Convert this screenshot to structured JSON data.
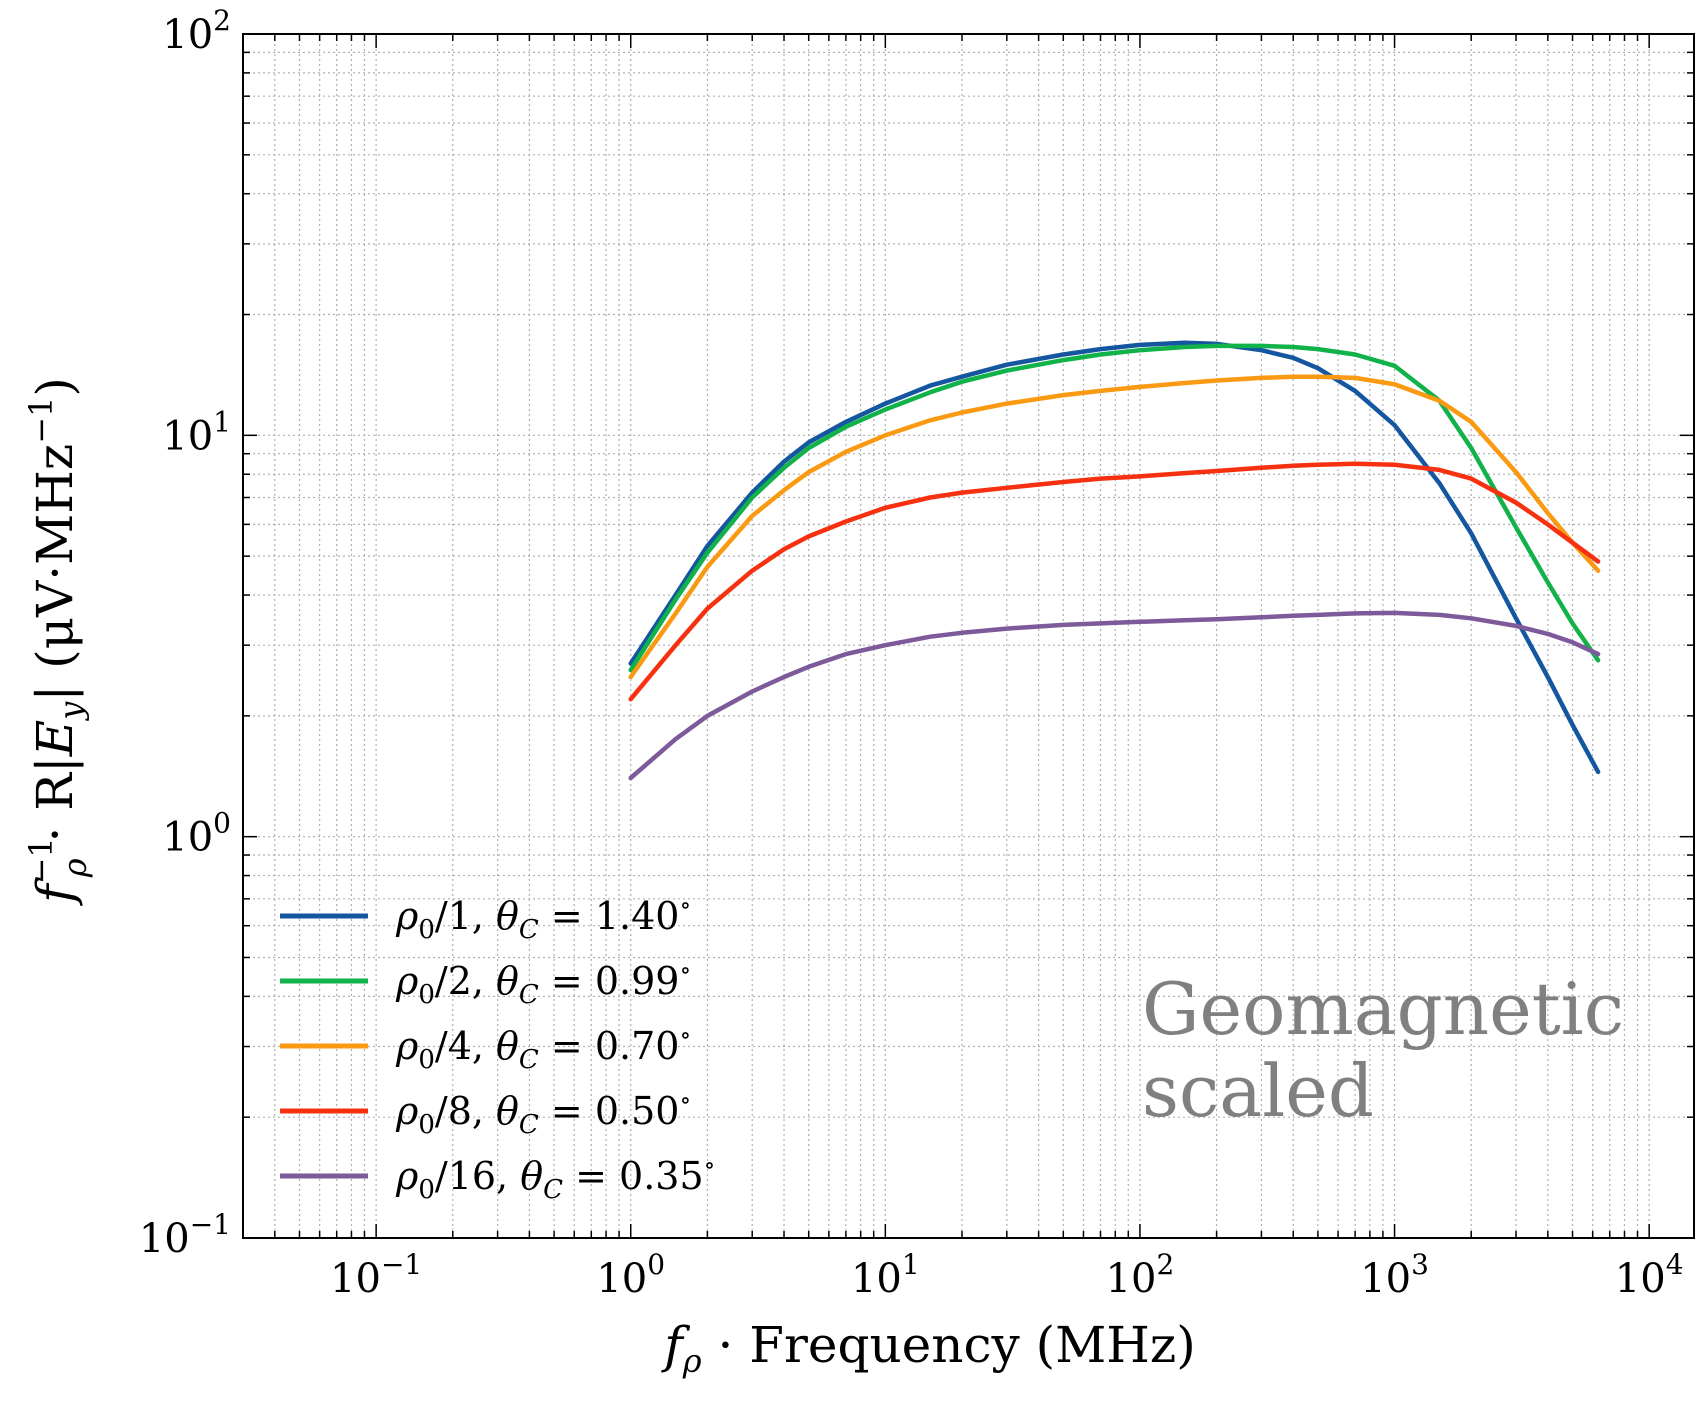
{
  "chart_data": {
    "type": "line",
    "title": "",
    "xlabel": "f_ρ · Frequency (MHz)",
    "xlabel_parts": {
      "sym": "f",
      "sub": "ρ",
      "rest": " · Frequency (MHz)"
    },
    "ylabel": "f_ρ^−1 · R|E_y| (μV·MHz^−1)",
    "ylabel_parts": {
      "f": "f",
      "f_sup": "−1",
      "f_sub": "ρ",
      "mid": " · R|",
      "E": "E",
      "E_sub": "y",
      "end": "| (μV·MHz",
      "end_sup": "−1",
      "close": ")"
    },
    "xscale": "log",
    "yscale": "log",
    "xlim": [
      0.03,
      15000
    ],
    "ylim": [
      0.1,
      100
    ],
    "grid": true,
    "legend_position": "lower-left",
    "x_ticks": [
      {
        "value": 0.1,
        "base": "10",
        "exp": "−1"
      },
      {
        "value": 1,
        "base": "10",
        "exp": "0"
      },
      {
        "value": 10,
        "base": "10",
        "exp": "1"
      },
      {
        "value": 100,
        "base": "10",
        "exp": "2"
      },
      {
        "value": 1000,
        "base": "10",
        "exp": "3"
      },
      {
        "value": 10000,
        "base": "10",
        "exp": "4"
      }
    ],
    "y_ticks": [
      {
        "value": 0.1,
        "base": "10",
        "exp": "−1"
      },
      {
        "value": 1,
        "base": "10",
        "exp": "0"
      },
      {
        "value": 10,
        "base": "10",
        "exp": "1"
      },
      {
        "value": 100,
        "base": "10",
        "exp": "2"
      }
    ],
    "annotation": [
      "Geomagnetic",
      "scaled"
    ],
    "series": [
      {
        "name": "ρ0/1, θC = 1.40°",
        "legend": {
          "rho": "ρ",
          "rho_sub": "0",
          "div": "/1, ",
          "theta": "θ",
          "theta_sub": "C",
          "value": " = 1.40",
          "deg": "∘"
        },
        "color": "#1556a0",
        "x": [
          1,
          1.5,
          2,
          3,
          4,
          5,
          7,
          10,
          15,
          20,
          30,
          50,
          70,
          100,
          150,
          200,
          300,
          400,
          500,
          700,
          1000,
          1500,
          2000,
          3000,
          4000,
          5000,
          6300
        ],
        "y": [
          2.7,
          4.0,
          5.3,
          7.2,
          8.6,
          9.6,
          10.8,
          12.0,
          13.3,
          14.0,
          15.0,
          15.9,
          16.4,
          16.8,
          17.0,
          16.9,
          16.3,
          15.6,
          14.7,
          12.9,
          10.6,
          7.6,
          5.7,
          3.5,
          2.5,
          1.9,
          1.45
        ]
      },
      {
        "name": "ρ0/2, θC = 0.99°",
        "legend": {
          "rho": "ρ",
          "rho_sub": "0",
          "div": "/2, ",
          "theta": "θ",
          "theta_sub": "C",
          "value": " = 0.99",
          "deg": "∘"
        },
        "color": "#12b24a",
        "x": [
          1,
          1.5,
          2,
          3,
          4,
          5,
          7,
          10,
          15,
          20,
          30,
          50,
          70,
          100,
          150,
          200,
          300,
          400,
          500,
          700,
          1000,
          1500,
          2000,
          3000,
          4000,
          5000,
          6300
        ],
        "y": [
          2.6,
          3.9,
          5.1,
          7.0,
          8.3,
          9.3,
          10.5,
          11.6,
          12.8,
          13.6,
          14.5,
          15.4,
          15.9,
          16.3,
          16.6,
          16.7,
          16.7,
          16.6,
          16.4,
          15.9,
          14.9,
          12.2,
          9.3,
          5.9,
          4.3,
          3.4,
          2.75
        ]
      },
      {
        "name": "ρ0/4, θC = 0.70°",
        "legend": {
          "rho": "ρ",
          "rho_sub": "0",
          "div": "/4, ",
          "theta": "θ",
          "theta_sub": "C",
          "value": " = 0.70",
          "deg": "∘"
        },
        "color": "#f99a12",
        "x": [
          1,
          1.5,
          2,
          3,
          4,
          5,
          7,
          10,
          15,
          20,
          30,
          50,
          70,
          100,
          150,
          200,
          300,
          400,
          500,
          700,
          1000,
          1500,
          2000,
          3000,
          4000,
          5000,
          6300
        ],
        "y": [
          2.5,
          3.6,
          4.7,
          6.3,
          7.3,
          8.1,
          9.1,
          10.0,
          10.9,
          11.4,
          12.0,
          12.6,
          12.9,
          13.2,
          13.5,
          13.7,
          13.9,
          14.0,
          14.0,
          13.9,
          13.4,
          12.2,
          10.8,
          8.1,
          6.4,
          5.4,
          4.6
        ]
      },
      {
        "name": "ρ0/8, θC = 0.50°",
        "legend": {
          "rho": "ρ",
          "rho_sub": "0",
          "div": "/8, ",
          "theta": "θ",
          "theta_sub": "C",
          "value": " = 0.50",
          "deg": "∘"
        },
        "color": "#f7300f",
        "x": [
          1,
          1.5,
          2,
          3,
          4,
          5,
          7,
          10,
          15,
          20,
          30,
          50,
          70,
          100,
          150,
          200,
          300,
          400,
          500,
          700,
          1000,
          1500,
          2000,
          3000,
          4000,
          5000,
          6300
        ],
        "y": [
          2.2,
          3.0,
          3.7,
          4.6,
          5.2,
          5.6,
          6.1,
          6.6,
          7.0,
          7.2,
          7.4,
          7.65,
          7.8,
          7.9,
          8.05,
          8.15,
          8.3,
          8.4,
          8.45,
          8.5,
          8.45,
          8.2,
          7.8,
          6.8,
          6.0,
          5.4,
          4.85
        ]
      },
      {
        "name": "ρ0/16, θC = 0.35°",
        "legend": {
          "rho": "ρ",
          "rho_sub": "0",
          "div": "/16, ",
          "theta": "θ",
          "theta_sub": "C",
          "value": " = 0.35",
          "deg": "∘"
        },
        "color": "#7d5a9a",
        "x": [
          1,
          1.5,
          2,
          3,
          4,
          5,
          7,
          10,
          15,
          20,
          30,
          50,
          70,
          100,
          150,
          200,
          300,
          400,
          500,
          700,
          1000,
          1500,
          2000,
          3000,
          4000,
          5000,
          6300
        ],
        "y": [
          1.4,
          1.75,
          2.0,
          2.3,
          2.5,
          2.65,
          2.85,
          3.0,
          3.15,
          3.22,
          3.3,
          3.37,
          3.4,
          3.43,
          3.46,
          3.48,
          3.52,
          3.55,
          3.57,
          3.6,
          3.61,
          3.57,
          3.5,
          3.35,
          3.2,
          3.05,
          2.85
        ]
      }
    ]
  }
}
